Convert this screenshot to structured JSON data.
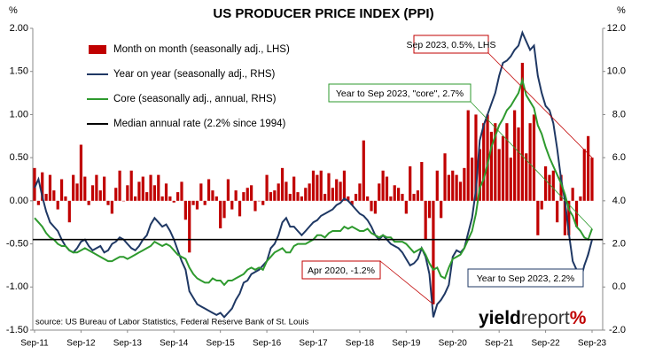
{
  "chart_data": {
    "type": "bar",
    "title": "US PRODUCER PRICE INDEX (PPI)",
    "y_unit": "%",
    "y2_unit": "%",
    "source": "source: US Bureau of Labor Statistics, Federal Reserve Bank of St. Louis",
    "logo": [
      "yield",
      "report",
      "%"
    ],
    "categories": [
      "Sep-11",
      null,
      null,
      null,
      null,
      null,
      null,
      null,
      null,
      null,
      null,
      null,
      "Sep-12",
      null,
      null,
      null,
      null,
      null,
      null,
      null,
      null,
      null,
      null,
      null,
      "Sep-13",
      null,
      null,
      null,
      null,
      null,
      null,
      null,
      null,
      null,
      null,
      null,
      "Sep-14",
      null,
      null,
      null,
      null,
      null,
      null,
      null,
      null,
      null,
      null,
      null,
      "Sep-15",
      null,
      null,
      null,
      null,
      null,
      null,
      null,
      null,
      null,
      null,
      null,
      "Sep-16",
      null,
      null,
      null,
      null,
      null,
      null,
      null,
      null,
      null,
      null,
      null,
      "Sep-17",
      null,
      null,
      null,
      null,
      null,
      null,
      null,
      null,
      null,
      null,
      null,
      "Sep-18",
      null,
      null,
      null,
      null,
      null,
      null,
      null,
      null,
      null,
      null,
      null,
      "Sep-19",
      null,
      null,
      null,
      null,
      null,
      null,
      null,
      null,
      null,
      null,
      null,
      "Sep-20",
      null,
      null,
      null,
      null,
      null,
      null,
      null,
      null,
      null,
      null,
      null,
      "Sep-21",
      null,
      null,
      null,
      null,
      null,
      null,
      null,
      null,
      null,
      null,
      null,
      "Sep-22",
      null,
      null,
      null,
      null,
      null,
      null,
      null,
      null,
      null,
      null,
      null,
      "Sep-23"
    ],
    "series": [
      {
        "name": "Month on month (seasonally adj., LHS)",
        "type": "bar",
        "color": "#c00000",
        "values": [
          0.38,
          -0.05,
          0.33,
          0.08,
          0.3,
          0.12,
          -0.1,
          0.25,
          0.05,
          -0.25,
          0.3,
          0.2,
          0.65,
          0.28,
          -0.05,
          0.18,
          0.3,
          0.12,
          0.28,
          -0.05,
          -0.15,
          0.15,
          0.35,
          0.0,
          0.18,
          0.35,
          0.05,
          0.22,
          0.28,
          0.1,
          0.3,
          0.18,
          0.3,
          0.05,
          0.2,
          0.05,
          -0.02,
          0.1,
          0.22,
          -0.22,
          -0.6,
          -0.05,
          -0.1,
          0.2,
          -0.05,
          0.25,
          0.12,
          0.05,
          -0.32,
          -0.2,
          0.25,
          -0.1,
          0.12,
          -0.18,
          0.1,
          0.15,
          0.18,
          -0.12,
          0.0,
          -0.05,
          0.3,
          0.1,
          0.12,
          0.2,
          0.38,
          0.22,
          0.08,
          0.28,
          0.1,
          0.05,
          0.15,
          0.2,
          0.35,
          0.3,
          0.35,
          0.08,
          0.32,
          0.15,
          0.25,
          0.22,
          0.35,
          0.05,
          -0.05,
          0.08,
          0.2,
          0.7,
          0.05,
          -0.12,
          -0.15,
          0.2,
          0.35,
          0.28,
          0.05,
          0.18,
          0.15,
          0.08,
          -0.15,
          0.4,
          0.08,
          0.12,
          0.45,
          -0.45,
          -0.2,
          -1.2,
          0.35,
          -0.2,
          0.55,
          0.3,
          0.35,
          0.3,
          0.22,
          0.38,
          1.05,
          0.5,
          1.0,
          0.6,
          0.9,
          1.0,
          0.8,
          0.9,
          0.6,
          0.75,
          0.9,
          0.5,
          1.05,
          0.85,
          1.6,
          0.55,
          0.9,
          1.0,
          -0.4,
          -0.1,
          0.4,
          0.3,
          0.35,
          -0.25,
          0.3,
          -0.4,
          -0.4,
          0.15,
          -0.3,
          0.05,
          0.6,
          0.75,
          0.5
        ]
      },
      {
        "name": "Year on year (seasonally adj., RHS)",
        "type": "line",
        "axis": "y2",
        "color": "#1f3864",
        "values": [
          4.6,
          5.0,
          4.2,
          3.5,
          3.0,
          2.8,
          2.6,
          2.2,
          1.9,
          1.7,
          1.6,
          1.8,
          2.1,
          2.2,
          1.9,
          1.7,
          1.8,
          1.9,
          1.6,
          1.7,
          2.0,
          2.1,
          2.3,
          2.2,
          2.0,
          1.8,
          1.7,
          1.9,
          2.2,
          2.4,
          2.9,
          3.2,
          3.0,
          2.8,
          2.9,
          2.6,
          2.2,
          1.7,
          1.2,
          0.8,
          -0.2,
          -0.5,
          -0.8,
          -0.9,
          -1.0,
          -1.1,
          -1.2,
          -1.3,
          -1.2,
          -1.4,
          -1.2,
          -1.0,
          -0.6,
          -0.3,
          0.2,
          0.3,
          0.6,
          0.7,
          0.8,
          1.0,
          1.2,
          1.8,
          2.0,
          2.4,
          3.0,
          3.2,
          2.8,
          2.8,
          2.6,
          2.4,
          2.6,
          2.8,
          3.0,
          3.1,
          3.3,
          3.4,
          3.5,
          3.6,
          3.8,
          3.9,
          4.1,
          4.0,
          3.8,
          3.6,
          3.4,
          3.3,
          3.1,
          2.8,
          2.4,
          2.2,
          2.4,
          2.2,
          2.0,
          1.9,
          1.8,
          1.6,
          1.3,
          1.0,
          1.1,
          1.3,
          1.8,
          1.4,
          0.6,
          -1.4,
          -0.8,
          -0.6,
          -0.3,
          0.1,
          1.4,
          1.7,
          1.6,
          1.8,
          2.5,
          3.2,
          4.5,
          6.8,
          7.5,
          8.0,
          8.5,
          9.0,
          9.8,
          10.4,
          10.5,
          10.7,
          11.0,
          11.2,
          11.8,
          11.4,
          11.0,
          11.2,
          9.8,
          9.0,
          8.4,
          8.2,
          7.6,
          6.4,
          5.0,
          4.0,
          2.5,
          1.2,
          0.8,
          0.3,
          1.0,
          1.5,
          2.2
        ]
      },
      {
        "name": "Core (seasonally adj., annual, RHS)",
        "type": "line",
        "axis": "y2",
        "color": "#2e9a2e",
        "values": [
          3.2,
          3.0,
          2.8,
          2.5,
          2.3,
          2.2,
          2.0,
          1.9,
          1.9,
          1.7,
          1.6,
          1.6,
          1.7,
          1.8,
          1.7,
          1.6,
          1.5,
          1.4,
          1.3,
          1.2,
          1.2,
          1.3,
          1.4,
          1.4,
          1.3,
          1.4,
          1.5,
          1.6,
          1.7,
          1.8,
          1.9,
          2.1,
          2.0,
          1.9,
          2.0,
          1.9,
          1.7,
          1.5,
          1.4,
          1.3,
          0.9,
          0.6,
          0.4,
          0.3,
          0.2,
          0.2,
          0.4,
          0.3,
          0.3,
          0.1,
          0.3,
          0.3,
          0.4,
          0.5,
          0.6,
          0.8,
          0.9,
          0.8,
          0.9,
          0.8,
          1.2,
          1.4,
          1.6,
          1.7,
          1.8,
          1.6,
          1.6,
          1.9,
          2.0,
          2.0,
          2.0,
          2.1,
          2.2,
          2.4,
          2.4,
          2.3,
          2.5,
          2.6,
          2.6,
          2.6,
          2.8,
          2.7,
          2.8,
          2.7,
          2.6,
          2.6,
          2.7,
          2.5,
          2.4,
          2.3,
          2.4,
          2.3,
          2.3,
          2.1,
          2.1,
          2.1,
          2.0,
          1.8,
          1.6,
          1.7,
          1.8,
          1.5,
          1.1,
          0.8,
          0.9,
          0.5,
          0.4,
          0.9,
          1.3,
          1.4,
          1.5,
          1.8,
          2.2,
          2.6,
          3.4,
          4.6,
          5.0,
          5.7,
          6.5,
          7.0,
          7.5,
          7.8,
          8.2,
          8.4,
          8.7,
          9.0,
          9.6,
          8.9,
          8.6,
          8.3,
          7.5,
          7.1,
          6.5,
          6.0,
          5.6,
          5.2,
          4.8,
          4.3,
          3.6,
          3.3,
          2.8,
          2.6,
          2.3,
          2.2,
          2.7
        ]
      }
    ],
    "reference_lines": [
      {
        "name": "Median annual rate (2.2% since 1994)",
        "value": 2.2,
        "axis": "y2",
        "color": "#000000"
      }
    ],
    "annotations": [
      {
        "text": "Sep 2023, 0.5%, LHS",
        "color": "#c00000"
      },
      {
        "text": "Year to Sep 2023, \"core\", 2.7%",
        "color": "#2e9a2e"
      },
      {
        "text": "Apr 2020, -1.2%",
        "color": "#c00000"
      },
      {
        "text": "Year to Sep 2023, 2.2%",
        "color": "#1f3864"
      }
    ],
    "ylim": [
      -1.5,
      2.0
    ],
    "yticks": [
      {
        "value": 2.0,
        "label": "2.00"
      },
      {
        "value": 1.5,
        "label": "1.50"
      },
      {
        "value": 1.0,
        "label": "1.00"
      },
      {
        "value": 0.5,
        "label": "0.50"
      },
      {
        "value": 0,
        "label": "0.00"
      },
      {
        "value": -0.5,
        "label": "-0.50"
      },
      {
        "value": -1.0,
        "label": "-1.00"
      },
      {
        "value": -1.5,
        "label": "-1.50"
      }
    ],
    "y2lim": [
      -2.0,
      12.0
    ],
    "y2ticks": [
      {
        "value": 12,
        "label": "12.0"
      },
      {
        "value": 10,
        "label": "10.0"
      },
      {
        "value": 8,
        "label": "8.0"
      },
      {
        "value": 6,
        "label": "6.0"
      },
      {
        "value": 4,
        "label": "4.0"
      },
      {
        "value": 2,
        "label": "2.0"
      },
      {
        "value": 0,
        "label": "0.0"
      },
      {
        "value": -2,
        "label": "-2.0"
      }
    ],
    "legend": "top-left",
    "grid": false
  }
}
